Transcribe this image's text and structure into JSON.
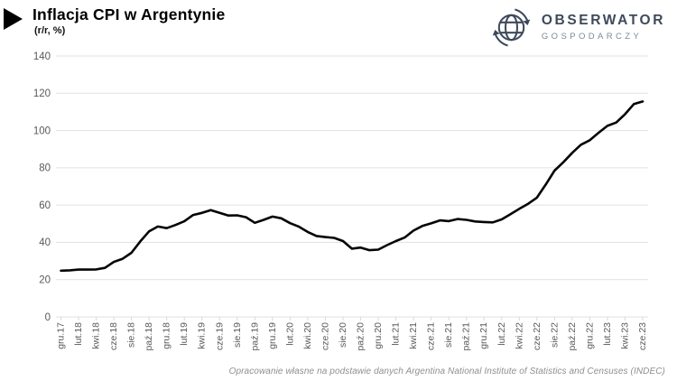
{
  "header": {
    "title": "Inflacja CPI w Argentynie",
    "subtitle": "(r/r, %)"
  },
  "logo": {
    "name": "OBSERWATOR",
    "tagline": "GOSPODARCZY",
    "color_primary": "#3e4a5b",
    "color_secondary": "#7e8799"
  },
  "footer": {
    "source": "Opracowanie własne na podstawie danych Argentina National Institute of Statistics and Censuses (INDEC)"
  },
  "chart_data": {
    "type": "line",
    "title": "Inflacja CPI w Argentynie",
    "subtitle": "(r/r, %)",
    "ylabel": "",
    "xlabel": "",
    "ylim": [
      0,
      140
    ],
    "y_tick_labels": [
      140,
      120,
      100,
      80,
      60,
      40,
      20,
      0
    ],
    "grid": true,
    "legend": false,
    "line_color": "#050505",
    "grid_color": "#e1e1e1",
    "axis_text_color": "#595959",
    "x_tick_every": 2,
    "x_tick_labels": [
      "gru.17",
      "lut.18",
      "kwi.18",
      "cze.18",
      "sie.18",
      "paź.18",
      "gru.18",
      "lut.19",
      "kwi.19",
      "cze.19",
      "sie.19",
      "paź.19",
      "gru.19",
      "lut.20",
      "kwi.20",
      "cze.20",
      "sie.20",
      "paź.20",
      "gru.20",
      "lut.21",
      "kwi.21",
      "cze.21",
      "sie.21",
      "paź.21",
      "gru.21",
      "lut.22",
      "kwi.22",
      "cze.22",
      "sie.22",
      "paź.22",
      "gru.22",
      "lut.23",
      "kwi.23",
      "cze.23"
    ],
    "values": [
      24.8,
      25.0,
      25.4,
      25.4,
      25.5,
      26.3,
      29.5,
      31.2,
      34.4,
      40.5,
      45.9,
      48.5,
      47.6,
      49.3,
      51.3,
      54.7,
      55.8,
      57.3,
      55.8,
      54.4,
      54.5,
      53.5,
      50.5,
      52.1,
      53.8,
      52.9,
      50.3,
      48.4,
      45.6,
      43.4,
      42.8,
      42.4,
      40.7,
      36.6,
      37.2,
      35.8,
      36.1,
      38.5,
      40.7,
      42.6,
      46.3,
      48.8,
      50.2,
      51.8,
      51.4,
      52.5,
      52.1,
      51.2,
      50.9,
      50.7,
      52.3,
      55.1,
      58.0,
      60.7,
      64.0,
      71.0,
      78.5,
      83.0,
      88.0,
      92.4,
      94.8,
      98.8,
      102.5,
      104.3,
      108.8,
      114.2,
      115.6
    ]
  }
}
